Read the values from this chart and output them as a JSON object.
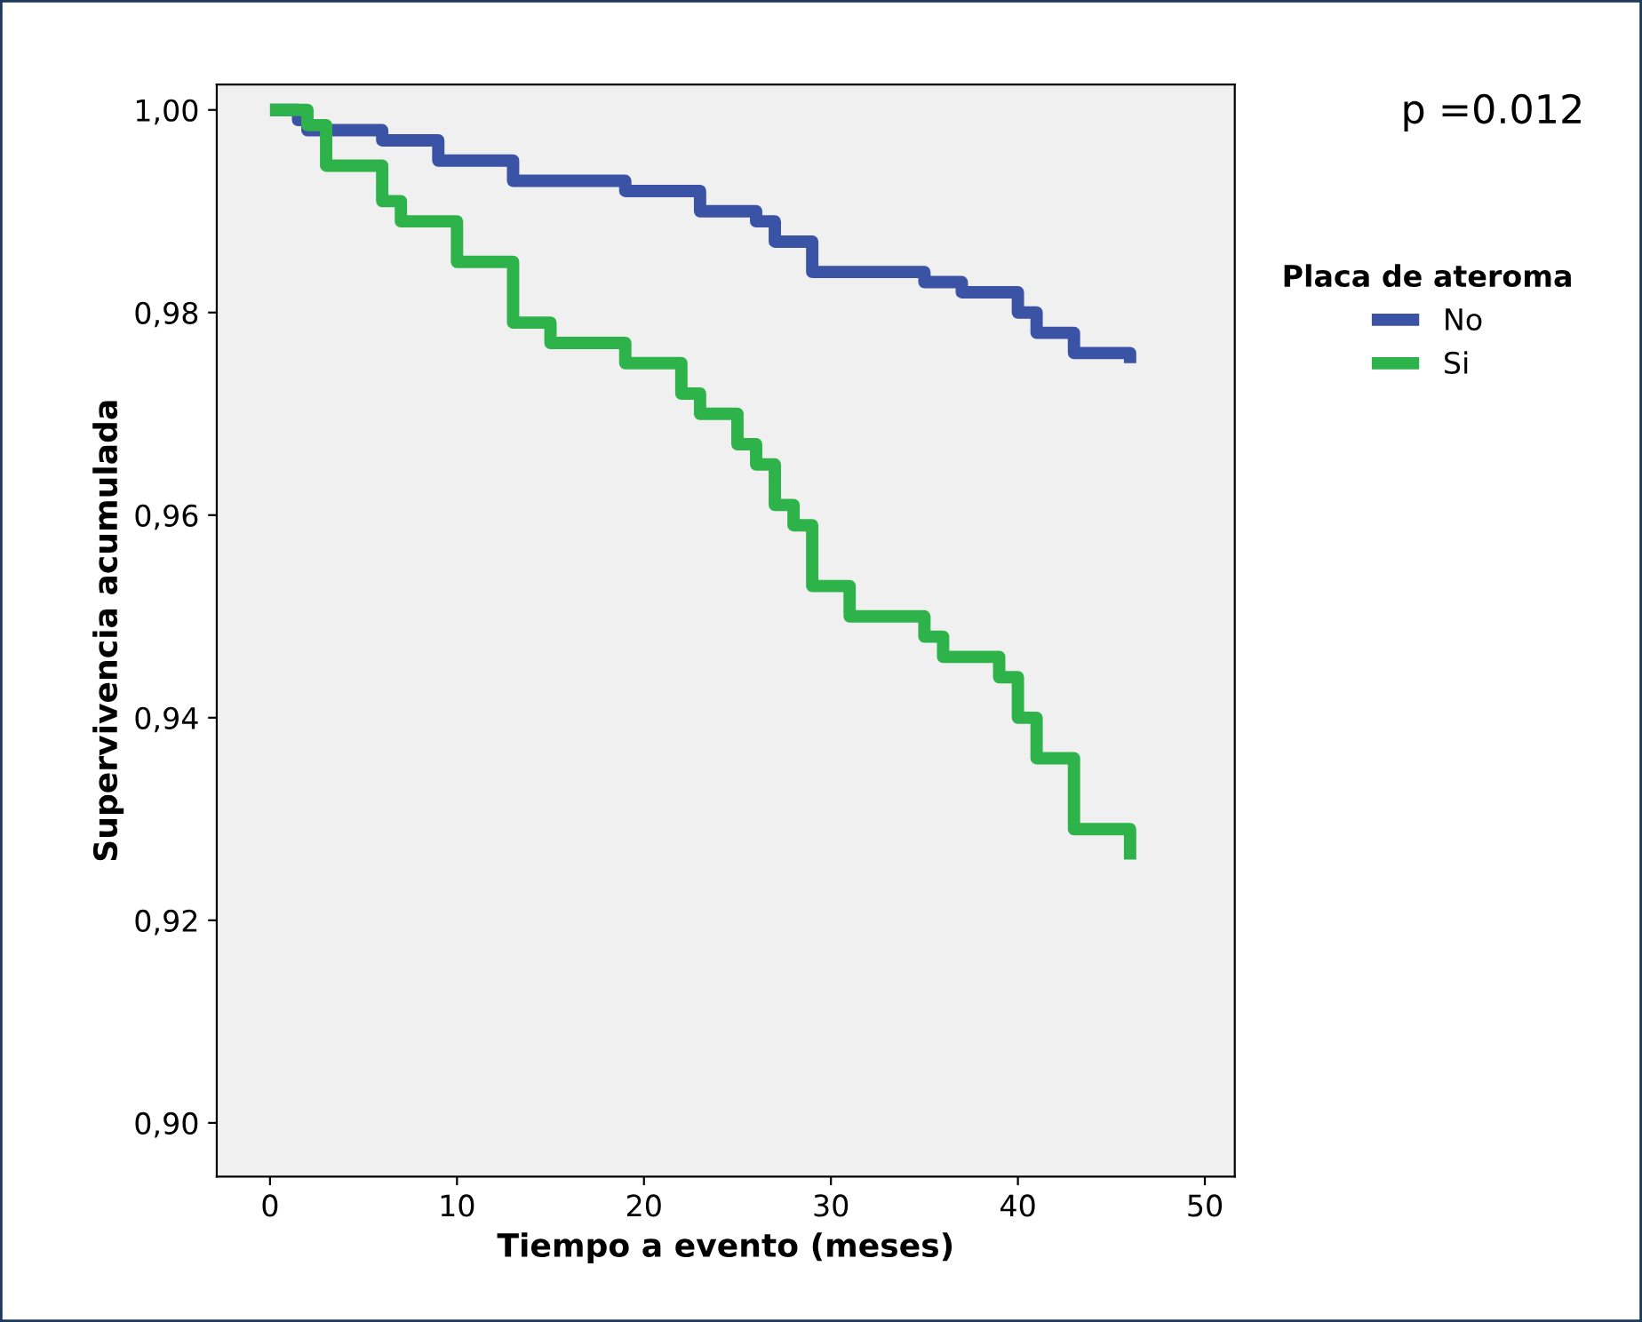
{
  "chart_data": {
    "type": "step",
    "xlabel": "Tiempo a evento (meses)",
    "ylabel": "Supervivencia acumulada",
    "legend_title": "Placa de ateroma",
    "legend": "right",
    "grid": false,
    "xlim": [
      -2.85,
      51.6
    ],
    "xticks": [
      0,
      10,
      20,
      30,
      40,
      50
    ],
    "ylim": [
      0.8947,
      1.0025
    ],
    "yticks": [
      {
        "value": 0.9,
        "label": "0,90"
      },
      {
        "value": 0.92,
        "label": "0,92"
      },
      {
        "value": 0.94,
        "label": "0,94"
      },
      {
        "value": 0.96,
        "label": "0,96"
      },
      {
        "value": 0.98,
        "label": "0,98"
      },
      {
        "value": 1.0,
        "label": "1,00"
      }
    ],
    "annotations": [
      "p =0.012"
    ],
    "series": [
      {
        "name": "No",
        "color": "#3a53a4",
        "x": [
          0,
          1.5,
          2,
          5,
          6,
          8,
          9,
          12,
          13,
          18,
          19,
          21,
          23,
          25,
          26,
          27,
          29,
          33,
          35,
          37,
          38,
          40,
          41,
          42,
          43,
          45,
          46
        ],
        "values": [
          1.0,
          0.999,
          0.998,
          0.998,
          0.997,
          0.997,
          0.995,
          0.995,
          0.993,
          0.993,
          0.992,
          0.992,
          0.99,
          0.99,
          0.989,
          0.987,
          0.984,
          0.984,
          0.983,
          0.982,
          0.982,
          0.98,
          0.978,
          0.978,
          0.976,
          0.976,
          0.975
        ]
      },
      {
        "name": "Si",
        "color": "#2db34a",
        "x": [
          0,
          2,
          3,
          5.5,
          6,
          7,
          9,
          10,
          12,
          13,
          15,
          18,
          19,
          21,
          22,
          23,
          25,
          26,
          27,
          28,
          29,
          31,
          34,
          35,
          36,
          38,
          39,
          40,
          41,
          42,
          43,
          45,
          46
        ],
        "values": [
          1.0,
          0.9985,
          0.9945,
          0.9945,
          0.991,
          0.989,
          0.989,
          0.985,
          0.985,
          0.979,
          0.977,
          0.977,
          0.975,
          0.975,
          0.972,
          0.97,
          0.967,
          0.965,
          0.961,
          0.959,
          0.953,
          0.95,
          0.95,
          0.948,
          0.946,
          0.946,
          0.944,
          0.94,
          0.936,
          0.936,
          0.929,
          0.929,
          0.926
        ]
      }
    ]
  }
}
